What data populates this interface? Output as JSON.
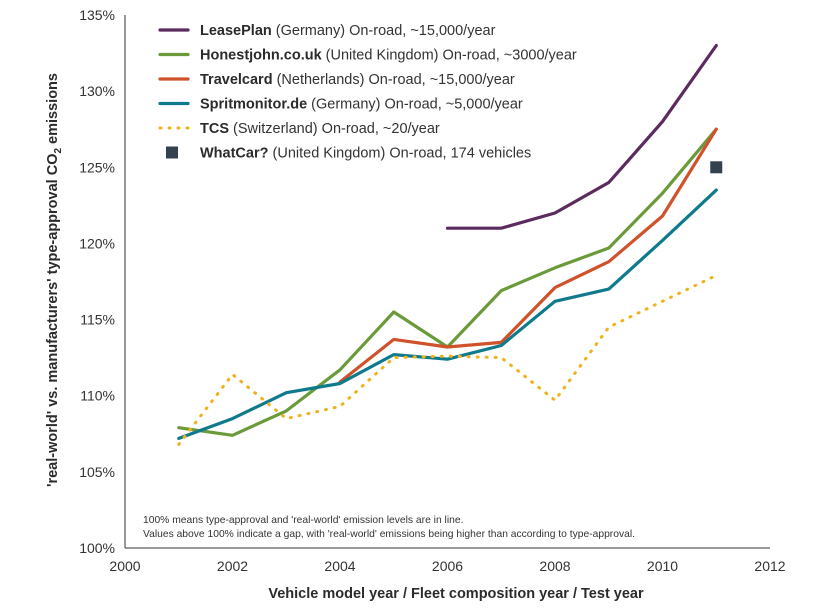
{
  "chart_data": {
    "type": "line",
    "xlabel": "Vehicle model year / Fleet composition year / Test year",
    "ylabel_parts": [
      "'real-world' vs. manufacturers' type-approval CO",
      "2",
      " emissions"
    ],
    "xlim": [
      2000,
      2012
    ],
    "ylim": [
      100,
      135
    ],
    "xticks": [
      2000,
      2002,
      2004,
      2006,
      2008,
      2010,
      2012
    ],
    "yticks": [
      100,
      105,
      110,
      115,
      120,
      125,
      130,
      135
    ],
    "ytick_suffix": "%",
    "grid": false,
    "legend_position": "top-left",
    "series": [
      {
        "name": "LeasePlan",
        "detail": " (Germany) On-road, ~15,000/year",
        "style": "solid",
        "color": "#5b2a5e",
        "x": [
          2006,
          2007,
          2008,
          2009,
          2010,
          2011
        ],
        "y": [
          121.0,
          121.0,
          122.0,
          124.0,
          128.0,
          133.0
        ]
      },
      {
        "name": "Honestjohn.co.uk",
        "detail": " (United Kingdom) On-road, ~3000/year",
        "style": "solid",
        "color": "#6a9a3a",
        "x": [
          2001,
          2002,
          2003,
          2004,
          2005,
          2006,
          2007,
          2008,
          2009,
          2010,
          2011
        ],
        "y": [
          107.9,
          107.4,
          109.0,
          111.7,
          115.5,
          113.2,
          116.9,
          118.4,
          119.7,
          123.3,
          127.5
        ]
      },
      {
        "name": "Travelcard",
        "detail": " (Netherlands) On-road, ~15,000/year",
        "style": "solid",
        "color": "#d0522b",
        "x": [
          2004,
          2005,
          2006,
          2007,
          2008,
          2009,
          2010,
          2011
        ],
        "y": [
          110.9,
          113.7,
          113.2,
          113.5,
          117.1,
          118.8,
          121.8,
          127.5
        ]
      },
      {
        "name": "Spritmonitor.de",
        "detail": " (Germany) On-road, ~5,000/year",
        "style": "solid",
        "color": "#0e7a8c",
        "x": [
          2001,
          2002,
          2003,
          2004,
          2005,
          2006,
          2007,
          2008,
          2009,
          2010,
          2011
        ],
        "y": [
          107.2,
          108.5,
          110.2,
          110.8,
          112.7,
          112.4,
          113.3,
          116.2,
          117.0,
          120.2,
          123.5
        ]
      },
      {
        "name": "TCS",
        "detail": " (Switzerland) On-road, ~20/year",
        "style": "dotted",
        "color": "#f0b21c",
        "x": [
          2001,
          2002,
          2003,
          2004,
          2005,
          2006,
          2007,
          2008,
          2009,
          2010,
          2011
        ],
        "y": [
          106.8,
          111.4,
          108.5,
          109.3,
          112.5,
          112.6,
          112.5,
          109.7,
          114.5,
          116.2,
          117.9
        ]
      },
      {
        "name": "WhatCar?",
        "detail": " (United Kingdom) On-road, 174 vehicles",
        "style": "marker",
        "color": "#34414e",
        "x": [
          2011
        ],
        "y": [
          125.0
        ]
      }
    ],
    "annotations": [
      "100% means type-approval and 'real-world' emission levels are in line.",
      "Values above 100% indicate a gap, with 'real-world' emissions being higher than according to type-approval."
    ]
  }
}
